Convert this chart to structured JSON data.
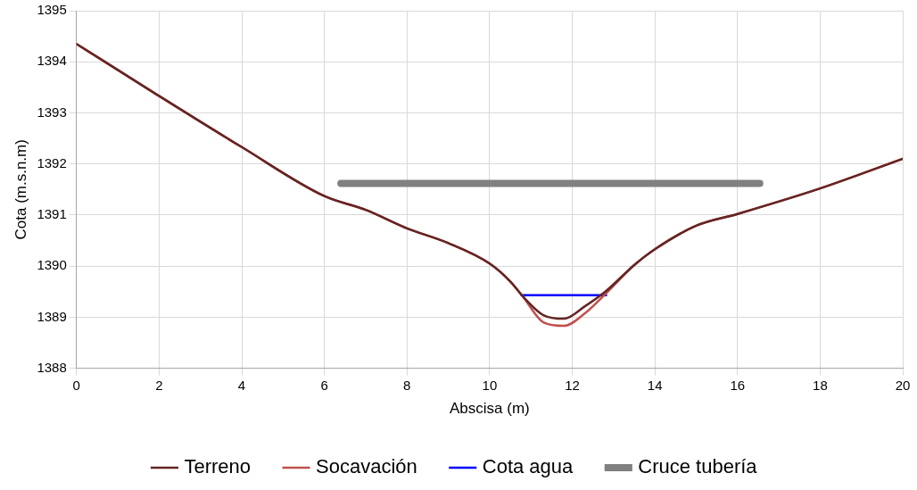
{
  "chart_data": {
    "type": "line",
    "xlabel": "Abscisa (m)",
    "ylabel": "Cota (m.s.n.m)",
    "xlim": [
      0,
      20
    ],
    "xticks": [
      0,
      2,
      4,
      6,
      8,
      10,
      12,
      14,
      16,
      18,
      20
    ],
    "ylim": [
      1388,
      1395
    ],
    "yticks": [
      1388,
      1389,
      1390,
      1391,
      1392,
      1393,
      1394,
      1395
    ],
    "grid": true,
    "legend": "bottom",
    "marker": "none",
    "line_style": "solid",
    "series": [
      {
        "name": "Terreno",
        "color": "#632523",
        "x": [
          0,
          2,
          4,
          6,
          7,
          8,
          9,
          10,
          10.5,
          10.8,
          11.3,
          11.8,
          12.3,
          12.8,
          13.5,
          14,
          15,
          16,
          18,
          20
        ],
        "values": [
          1394.35,
          1393.33,
          1392.33,
          1391.37,
          1391.1,
          1390.74,
          1390.45,
          1390.05,
          1389.7,
          1389.41,
          1389.04,
          1388.97,
          1389.21,
          1389.5,
          1390.02,
          1390.33,
          1390.79,
          1391.02,
          1391.52,
          1392.1
        ]
      },
      {
        "name": "Socavación",
        "color": "#c0504d",
        "x": [
          0,
          2,
          4,
          6,
          7,
          8,
          9,
          10,
          10.5,
          10.8,
          11.3,
          11.8,
          12.3,
          12.8,
          13.5,
          14,
          15,
          16,
          18,
          20
        ],
        "values": [
          1394.35,
          1393.33,
          1392.33,
          1391.37,
          1391.1,
          1390.74,
          1390.45,
          1390.05,
          1389.7,
          1389.41,
          1388.9,
          1388.83,
          1389.07,
          1389.45,
          1390.02,
          1390.33,
          1390.79,
          1391.02,
          1391.52,
          1392.1
        ]
      },
      {
        "name": "Cota agua",
        "color": "#0000ff",
        "x": [
          10.77,
          12.82
        ],
        "values": [
          1389.43,
          1389.43
        ]
      },
      {
        "name": "Cruce tubería",
        "color": "#808080",
        "x": [
          6.4,
          16.54
        ],
        "values": [
          1391.62,
          1391.62
        ]
      }
    ]
  }
}
